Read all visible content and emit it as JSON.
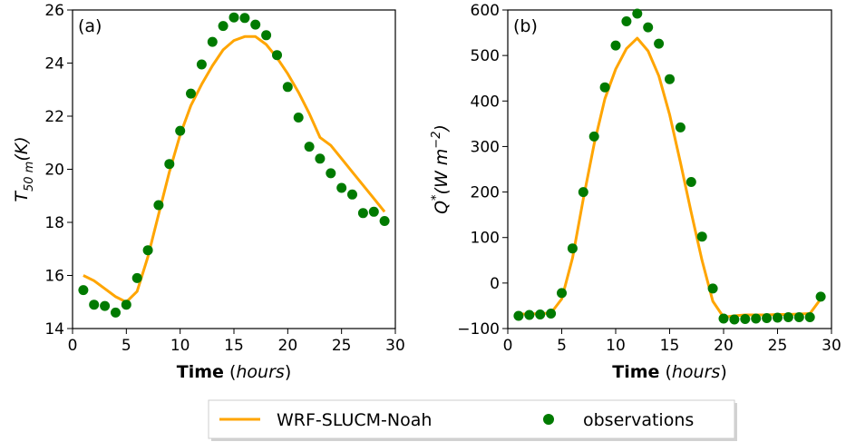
{
  "legend": {
    "line_label": "WRF-SLUCM-Noah",
    "points_label": "observations",
    "line_color": "#ffa500",
    "points_color": "#007a00"
  },
  "chart_data": [
    {
      "type": "line",
      "panel": "(a)",
      "xlabel_bold": "Time",
      "xlabel_unit": "(hours)",
      "ylabel": {
        "main": "T",
        "sub": "50 m",
        "rest": "(K)"
      },
      "xlim": [
        0,
        30
      ],
      "ylim": [
        14,
        26
      ],
      "xticks": [
        0,
        5,
        10,
        15,
        20,
        25,
        30
      ],
      "yticks": [
        14,
        16,
        18,
        20,
        22,
        24,
        26
      ],
      "series": [
        {
          "name": "WRF-SLUCM-Noah",
          "kind": "line",
          "x": [
            1,
            2,
            3,
            4,
            5,
            6,
            7,
            8,
            9,
            10,
            11,
            12,
            13,
            14,
            15,
            16,
            17,
            18,
            19,
            20,
            21,
            22,
            23,
            24,
            25,
            26,
            27,
            28,
            29
          ],
          "y": [
            16.0,
            15.8,
            15.5,
            15.2,
            15.0,
            15.4,
            16.7,
            18.3,
            19.9,
            21.3,
            22.4,
            23.2,
            23.9,
            24.5,
            24.85,
            25.0,
            25.0,
            24.7,
            24.2,
            23.6,
            22.9,
            22.1,
            21.2,
            20.9,
            20.4,
            19.9,
            19.4,
            18.9,
            18.4
          ]
        },
        {
          "name": "observations",
          "kind": "scatter",
          "x": [
            1,
            2,
            3,
            4,
            5,
            6,
            7,
            8,
            9,
            10,
            11,
            12,
            13,
            14,
            15,
            16,
            17,
            18,
            19,
            20,
            21,
            22,
            23,
            24,
            25,
            26,
            27,
            28,
            29
          ],
          "y": [
            15.45,
            14.9,
            14.85,
            14.6,
            14.9,
            15.9,
            16.95,
            18.65,
            20.2,
            21.45,
            22.85,
            23.95,
            24.8,
            25.4,
            25.72,
            25.7,
            25.45,
            25.05,
            24.3,
            23.1,
            21.95,
            20.85,
            20.4,
            19.85,
            19.3,
            19.05,
            18.35,
            18.4,
            18.05
          ]
        }
      ]
    },
    {
      "type": "line",
      "panel": "(b)",
      "xlabel_bold": "Time",
      "xlabel_unit": "(hours)",
      "ylabel": {
        "main": "Q",
        "sup": "*",
        "rest": "(W m",
        "sup2": "−2",
        "close": ")"
      },
      "xlim": [
        0,
        30
      ],
      "ylim": [
        -100,
        600
      ],
      "xticks": [
        0,
        5,
        10,
        15,
        20,
        25,
        30
      ],
      "yticks": [
        -100,
        0,
        100,
        200,
        300,
        400,
        500,
        600
      ],
      "series": [
        {
          "name": "WRF-SLUCM-Noah",
          "kind": "line",
          "x": [
            1,
            2,
            3,
            4,
            5,
            6,
            7,
            8,
            9,
            10,
            11,
            12,
            13,
            14,
            15,
            16,
            17,
            18,
            19,
            20,
            21,
            22,
            23,
            24,
            25,
            26,
            27,
            28,
            29
          ],
          "y": [
            -68,
            -68,
            -67,
            -66,
            -35,
            55,
            185,
            305,
            405,
            470,
            515,
            538,
            510,
            455,
            370,
            265,
            155,
            50,
            -40,
            -75,
            -72,
            -70,
            -70,
            -70,
            -69,
            -69,
            -68,
            -67,
            -35
          ]
        },
        {
          "name": "observations",
          "kind": "scatter",
          "x": [
            1,
            2,
            3,
            4,
            5,
            6,
            7,
            8,
            9,
            10,
            11,
            12,
            13,
            14,
            15,
            16,
            17,
            18,
            19,
            20,
            21,
            22,
            23,
            24,
            25,
            26,
            27,
            28,
            29
          ],
          "y": [
            -72,
            -70,
            -69,
            -67,
            -22,
            76,
            200,
            322,
            430,
            522,
            575,
            592,
            562,
            526,
            448,
            342,
            222,
            102,
            -12,
            -78,
            -80,
            -79,
            -78,
            -77,
            -76,
            -75,
            -75,
            -75,
            -30
          ]
        }
      ]
    }
  ]
}
